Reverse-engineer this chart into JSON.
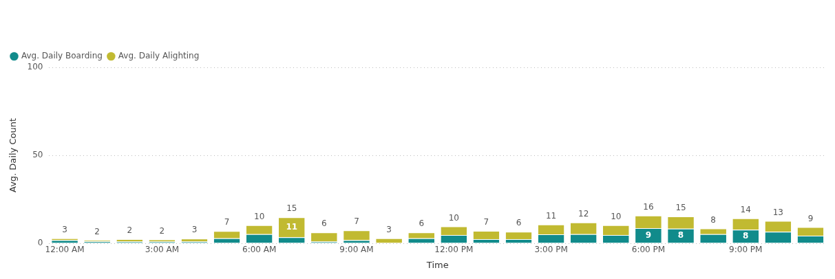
{
  "chart_data": {
    "type": "bar",
    "stacked": true,
    "xlabel": "Time",
    "ylabel": "Avg. Daily Count",
    "categories": [
      "12:00 AM",
      null,
      null,
      "3:00 AM",
      null,
      null,
      "6:00 AM",
      null,
      null,
      "9:00 AM",
      null,
      null,
      "12:00 PM",
      null,
      null,
      "3:00 PM",
      null,
      null,
      "6:00 PM",
      null,
      null,
      "9:00 PM",
      null,
      null
    ],
    "series": [
      {
        "name": "Avg. Daily Boarding",
        "color": "#118b8b",
        "values": [
          1.8,
          1.1,
          1.0,
          1.0,
          1.0,
          2.8,
          5.2,
          3.4,
          1.0,
          1.8,
          null,
          2.8,
          4.7,
          2.3,
          2.3,
          5.1,
          5.2,
          4.7,
          8.6,
          8.3,
          5.2,
          7.7,
          6.5,
          4.3
        ],
        "value_labels": [
          null,
          null,
          null,
          null,
          null,
          null,
          null,
          null,
          null,
          null,
          null,
          null,
          null,
          null,
          null,
          null,
          null,
          null,
          "9",
          "8",
          null,
          "8",
          null,
          null
        ]
      },
      {
        "name": "Avg. Daily Alighting",
        "color": "#c1ba31",
        "values": [
          1.0,
          0.7,
          1.3,
          1.1,
          1.6,
          4.1,
          5.1,
          11.3,
          5.2,
          5.5,
          2.8,
          3.4,
          4.9,
          4.7,
          4.2,
          5.5,
          6.6,
          5.6,
          7.1,
          6.9,
          3.2,
          6.5,
          6.2,
          4.9
        ],
        "value_labels": [
          null,
          null,
          null,
          null,
          null,
          null,
          null,
          "11",
          null,
          null,
          null,
          null,
          null,
          null,
          null,
          null,
          null,
          null,
          null,
          null,
          null,
          null,
          null,
          null
        ]
      }
    ],
    "totals": [
      "3",
      "2",
      "2",
      "2",
      "3",
      "7",
      "10",
      "15",
      "6",
      "7",
      "3",
      "6",
      "10",
      "7",
      "6",
      "11",
      "12",
      "10",
      "16",
      "15",
      "8",
      "14",
      "13",
      "9"
    ],
    "ylim": [
      0,
      100
    ],
    "yticks": [
      0,
      50,
      100
    ],
    "grid": "y",
    "legend": "top left"
  }
}
